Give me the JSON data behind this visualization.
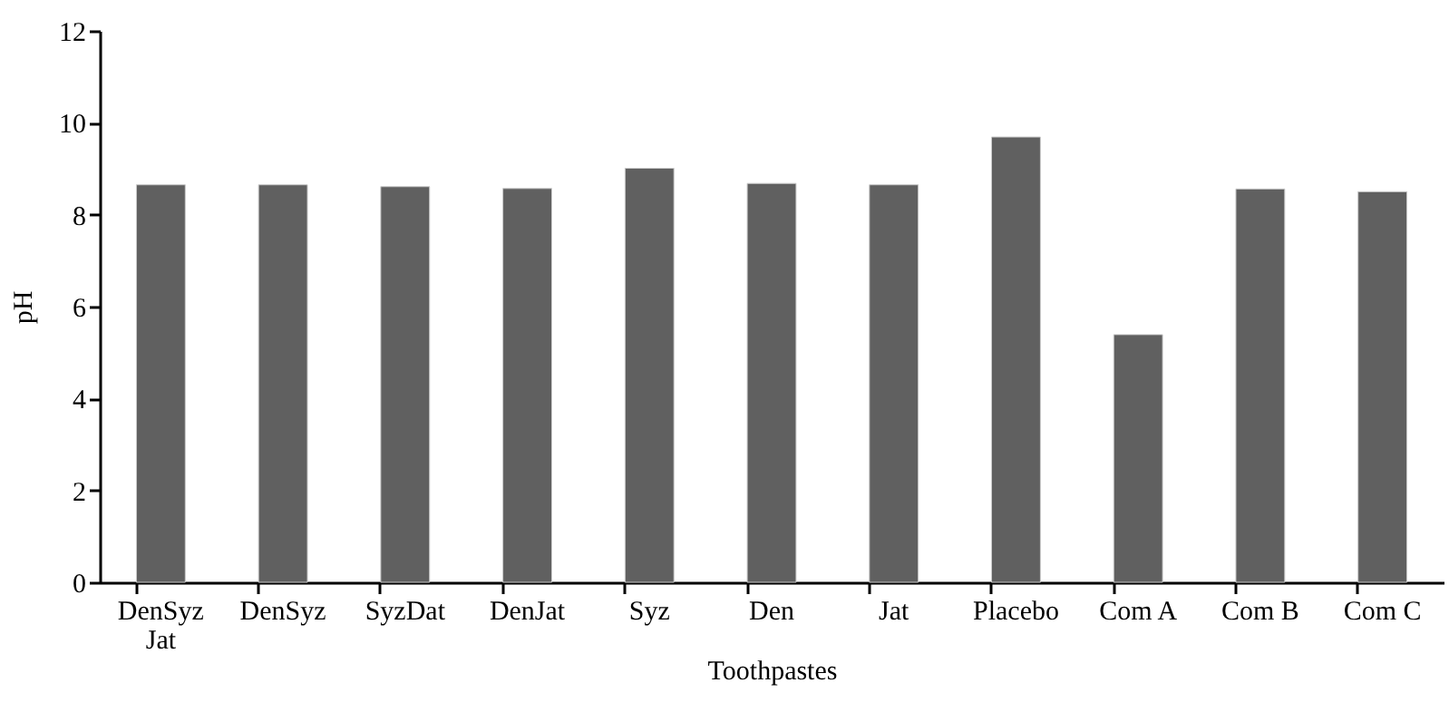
{
  "chart_data": {
    "type": "bar",
    "xlabel": "Toothpastes",
    "ylabel": "pH",
    "categories": [
      "DenSyz Jat",
      "DenSyz",
      "SyzDat",
      "DenJat",
      "Syz",
      "Den",
      "Jat",
      "Placebo",
      "Com A",
      "Com B",
      "Com C"
    ],
    "values": [
      8.65,
      8.65,
      8.61,
      8.57,
      9.01,
      8.68,
      8.65,
      9.69,
      5.39,
      8.56,
      8.5
    ],
    "color": "#606060",
    "ylim": [
      0,
      12
    ],
    "yticks": [
      0,
      2,
      4,
      6,
      8,
      10,
      12
    ],
    "grid": false
  }
}
